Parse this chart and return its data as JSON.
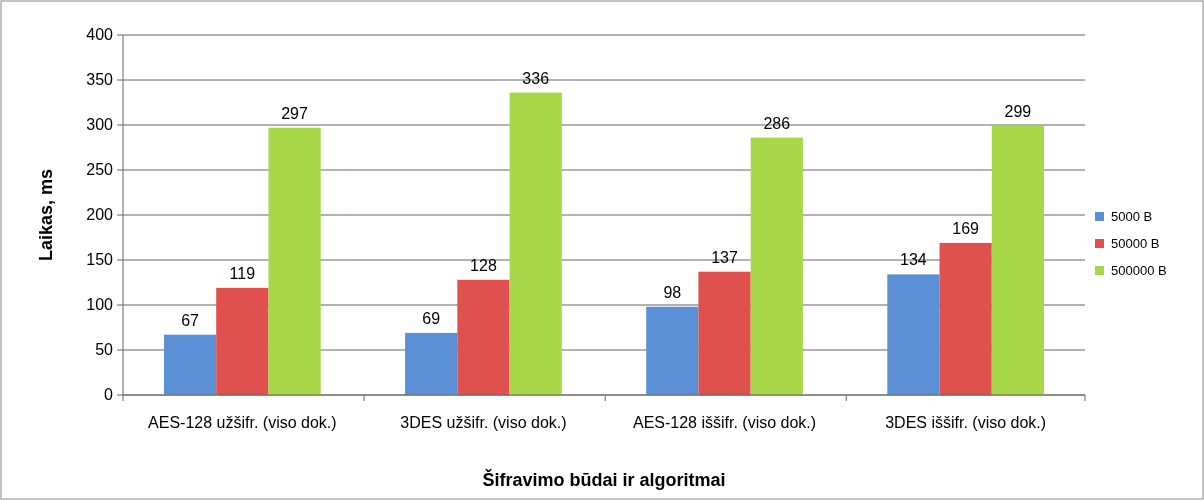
{
  "chart_data": {
    "type": "bar",
    "xlabel": "Šifravimo būdai ir algoritmai",
    "ylabel": "Laikas, ms",
    "categories": [
      "AES-128 užšifr. (viso dok.)",
      "3DES užšifr. (viso dok.)",
      "AES-128 iššifr. (viso dok.)",
      "3DES iššifr. (viso dok.)"
    ],
    "series": [
      {
        "name": "5000 B",
        "color": "#5b8fd6",
        "values": [
          67,
          69,
          98,
          134
        ]
      },
      {
        "name": "50000 B",
        "color": "#e0504e",
        "values": [
          119,
          128,
          137,
          169
        ]
      },
      {
        "name": "500000 B",
        "color": "#a8d84a",
        "values": [
          297,
          336,
          286,
          299
        ]
      }
    ],
    "ylim": [
      0,
      400
    ],
    "yticks": [
      0,
      50,
      100,
      150,
      200,
      250,
      300,
      350,
      400
    ],
    "grid": "y",
    "legend": "right",
    "data_labels": true
  }
}
